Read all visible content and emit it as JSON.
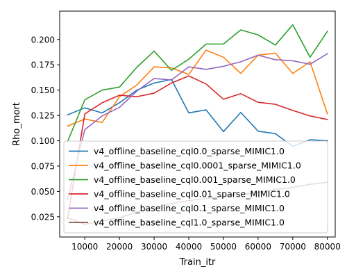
{
  "chart_data": {
    "type": "line",
    "title": "",
    "xlabel": "Train_itr",
    "ylabel": "Rho_mort",
    "xlim": [
      2750,
      82250
    ],
    "ylim": [
      0.005,
      0.228
    ],
    "x_ticks": [
      10000,
      20000,
      30000,
      40000,
      50000,
      60000,
      70000,
      80000
    ],
    "x_tick_labels": [
      "10000",
      "20000",
      "30000",
      "40000",
      "50000",
      "60000",
      "70000",
      "80000"
    ],
    "y_ticks": [
      0.025,
      0.05,
      0.075,
      0.1,
      0.125,
      0.15,
      0.175,
      0.2
    ],
    "y_tick_labels": [
      "0.025",
      "0.050",
      "0.075",
      "0.100",
      "0.125",
      "0.150",
      "0.175",
      "0.200"
    ],
    "grid": false,
    "legend_position": "lower-left",
    "x": [
      5000,
      10000,
      15000,
      20000,
      25000,
      30000,
      35000,
      40000,
      45000,
      50000,
      55000,
      60000,
      65000,
      70000,
      75000,
      80000
    ],
    "series": [
      {
        "name": "v4_offline_baseline_cql0.0_sparse_MIMIC1.0",
        "color": "#1f77b4",
        "values": [
          0.1255,
          0.1325,
          0.1275,
          0.1375,
          0.15,
          0.157,
          0.1605,
          0.1275,
          0.1305,
          0.109,
          0.128,
          0.1095,
          0.107,
          0.0945,
          0.101,
          0.1
        ]
      },
      {
        "name": "v4_offline_baseline_cql0.0001_sparse_MIMIC1.0",
        "color": "#ff7f0e",
        "values": [
          0.1145,
          0.1215,
          0.118,
          0.1435,
          0.155,
          0.173,
          0.172,
          0.1655,
          0.1895,
          0.1825,
          0.1665,
          0.1845,
          0.1865,
          0.1665,
          0.178,
          0.1265
        ]
      },
      {
        "name": "v4_offline_baseline_cql0.001_sparse_MIMIC1.0",
        "color": "#2ca02c",
        "values": [
          0.099,
          0.1405,
          0.15,
          0.153,
          0.1725,
          0.1885,
          0.1695,
          0.1805,
          0.1955,
          0.1955,
          0.2095,
          0.2045,
          0.1945,
          0.2145,
          0.1825,
          0.208
        ]
      },
      {
        "name": "v4_offline_baseline_cql0.01_sparse_MIMIC1.0",
        "color": "#d62728",
        "values": [
          0.023,
          0.1265,
          0.1375,
          0.145,
          0.1435,
          0.147,
          0.157,
          0.164,
          0.156,
          0.141,
          0.1465,
          0.138,
          0.136,
          0.13,
          0.1245,
          0.121
        ]
      },
      {
        "name": "v4_offline_baseline_cql0.1_sparse_MIMIC1.0",
        "color": "#9467bd",
        "values": [
          0.042,
          0.111,
          0.1245,
          0.133,
          0.149,
          0.1615,
          0.16,
          0.173,
          0.1705,
          0.1735,
          0.178,
          0.1845,
          0.18,
          0.179,
          0.1755,
          0.186
        ]
      },
      {
        "name": "v4_offline_baseline_cql1.0_sparse_MIMIC1.0",
        "color": "#8c564b",
        "values": [
          0.024,
          0.0175,
          0.021,
          0.024,
          0.0295,
          0.0335,
          0.038,
          0.041,
          0.043,
          0.045,
          0.047,
          0.049,
          0.052,
          0.054,
          0.057,
          0.059
        ]
      }
    ]
  }
}
